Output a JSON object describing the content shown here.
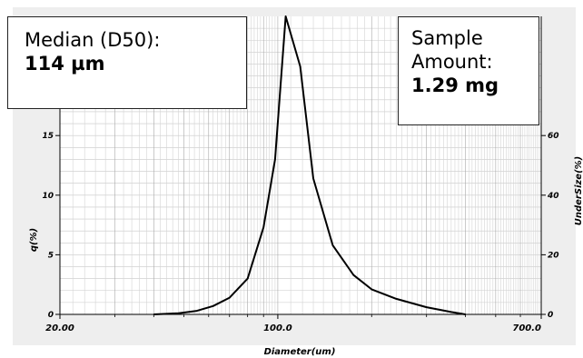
{
  "annotations": {
    "median_label": "Median (D50):",
    "median_value": "114 µm",
    "amount_label_1": "Sample",
    "amount_label_2": "Amount:",
    "amount_value": "1.29 mg"
  },
  "chart_data": {
    "type": "line",
    "title": "",
    "xlabel": "Diameter(um)",
    "ylabel": "q(%)",
    "y2label": "UnderSize(%)",
    "xscale": "log",
    "xlim": [
      20,
      700
    ],
    "ylim": [
      0,
      25
    ],
    "y2lim": [
      0,
      100
    ],
    "x_tick_labels": [
      "20.00",
      "100.0",
      "700.0"
    ],
    "y_tick_labels": [
      "0",
      "5",
      "10",
      "15"
    ],
    "y2_tick_labels": [
      "0",
      "20",
      "40",
      "60"
    ],
    "grid": true,
    "series": [
      {
        "x": [
          40,
          48,
          55,
          62,
          70,
          80,
          90,
          98,
          106,
          118,
          130,
          150,
          175,
          200,
          240,
          300,
          360,
          400
        ],
        "values": [
          0,
          0.1,
          0.3,
          0.7,
          1.4,
          3.0,
          7.3,
          13.0,
          25.0,
          20.8,
          11.4,
          5.8,
          3.3,
          2.1,
          1.3,
          0.6,
          0.2,
          0
        ]
      }
    ]
  }
}
